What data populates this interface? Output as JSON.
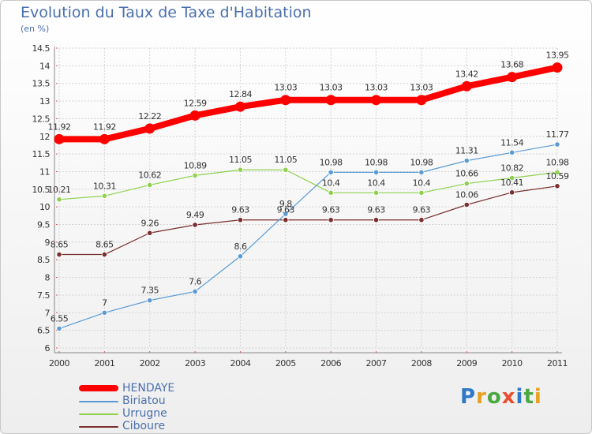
{
  "title": "Evolution du Taux de Taxe d'Habitation",
  "unit": "(en %)",
  "logo": {
    "letters": [
      "P",
      "r",
      "o",
      "x",
      "i",
      "t",
      "i"
    ],
    "colors": [
      "#2e79c7",
      "#e6a01c",
      "#4aa841",
      "#e94f2f",
      "#2e79c7",
      "#4aa841",
      "#e6a01c"
    ]
  },
  "chart_data": {
    "type": "line",
    "categories": [
      "2000",
      "2001",
      "2002",
      "2003",
      "2004",
      "2005",
      "2006",
      "2007",
      "2008",
      "2009",
      "2010",
      "2011"
    ],
    "ylim": [
      6,
      14.5
    ],
    "yticks": [
      "6",
      "6.5",
      "7",
      "7.5",
      "8",
      "8.5",
      "9",
      "9.5",
      "10",
      "10.5",
      "11",
      "11.5",
      "12",
      "12.5",
      "13",
      "13.5",
      "14",
      "14.5"
    ],
    "grid": true,
    "legend_position": "bottom-left",
    "series": [
      {
        "name": "HENDAYE",
        "color": "#ff0000",
        "values": [
          11.92,
          11.92,
          12.22,
          12.59,
          12.84,
          13.03,
          13.03,
          13.03,
          13.03,
          13.42,
          13.68,
          13.95
        ],
        "labels": [
          "11.92",
          "11.92",
          "12.22",
          "12.59",
          "12.84",
          "13.03",
          "13.03",
          "13.03",
          "13.03",
          "13.42",
          "13.68",
          "13.95"
        ]
      },
      {
        "name": "Biriatou",
        "color": "#5b9bd5",
        "values": [
          6.55,
          7,
          7.35,
          7.6,
          8.6,
          9.8,
          10.98,
          10.98,
          10.98,
          11.31,
          11.54,
          11.77
        ],
        "labels": [
          "6.55",
          "7",
          "7.35",
          "7.6",
          "8.6",
          "9.8",
          "10.98",
          "10.98",
          "10.98",
          "11.31",
          "11.54",
          "11.77"
        ]
      },
      {
        "name": "Urrugne",
        "color": "#8fd14f",
        "values": [
          10.21,
          10.31,
          10.62,
          10.89,
          11.05,
          11.05,
          10.4,
          10.4,
          10.4,
          10.66,
          10.82,
          10.98
        ],
        "labels": [
          "10.21",
          "10.31",
          "10.62",
          "10.89",
          "11.05",
          "11.05",
          "10.4",
          "10.4",
          "10.4",
          "10.66",
          "10.82",
          "10.98"
        ]
      },
      {
        "name": "Ciboure",
        "color": "#7a2e2e",
        "values": [
          8.65,
          8.65,
          9.26,
          9.49,
          9.63,
          9.63,
          9.63,
          9.63,
          9.63,
          10.06,
          10.41,
          10.59
        ],
        "labels": [
          "8.65",
          "8.65",
          "9.26",
          "9.49",
          "9.63",
          "9.63",
          "9.63",
          "9.63",
          "9.63",
          "10.06",
          "10.41",
          "10.59"
        ]
      }
    ]
  }
}
